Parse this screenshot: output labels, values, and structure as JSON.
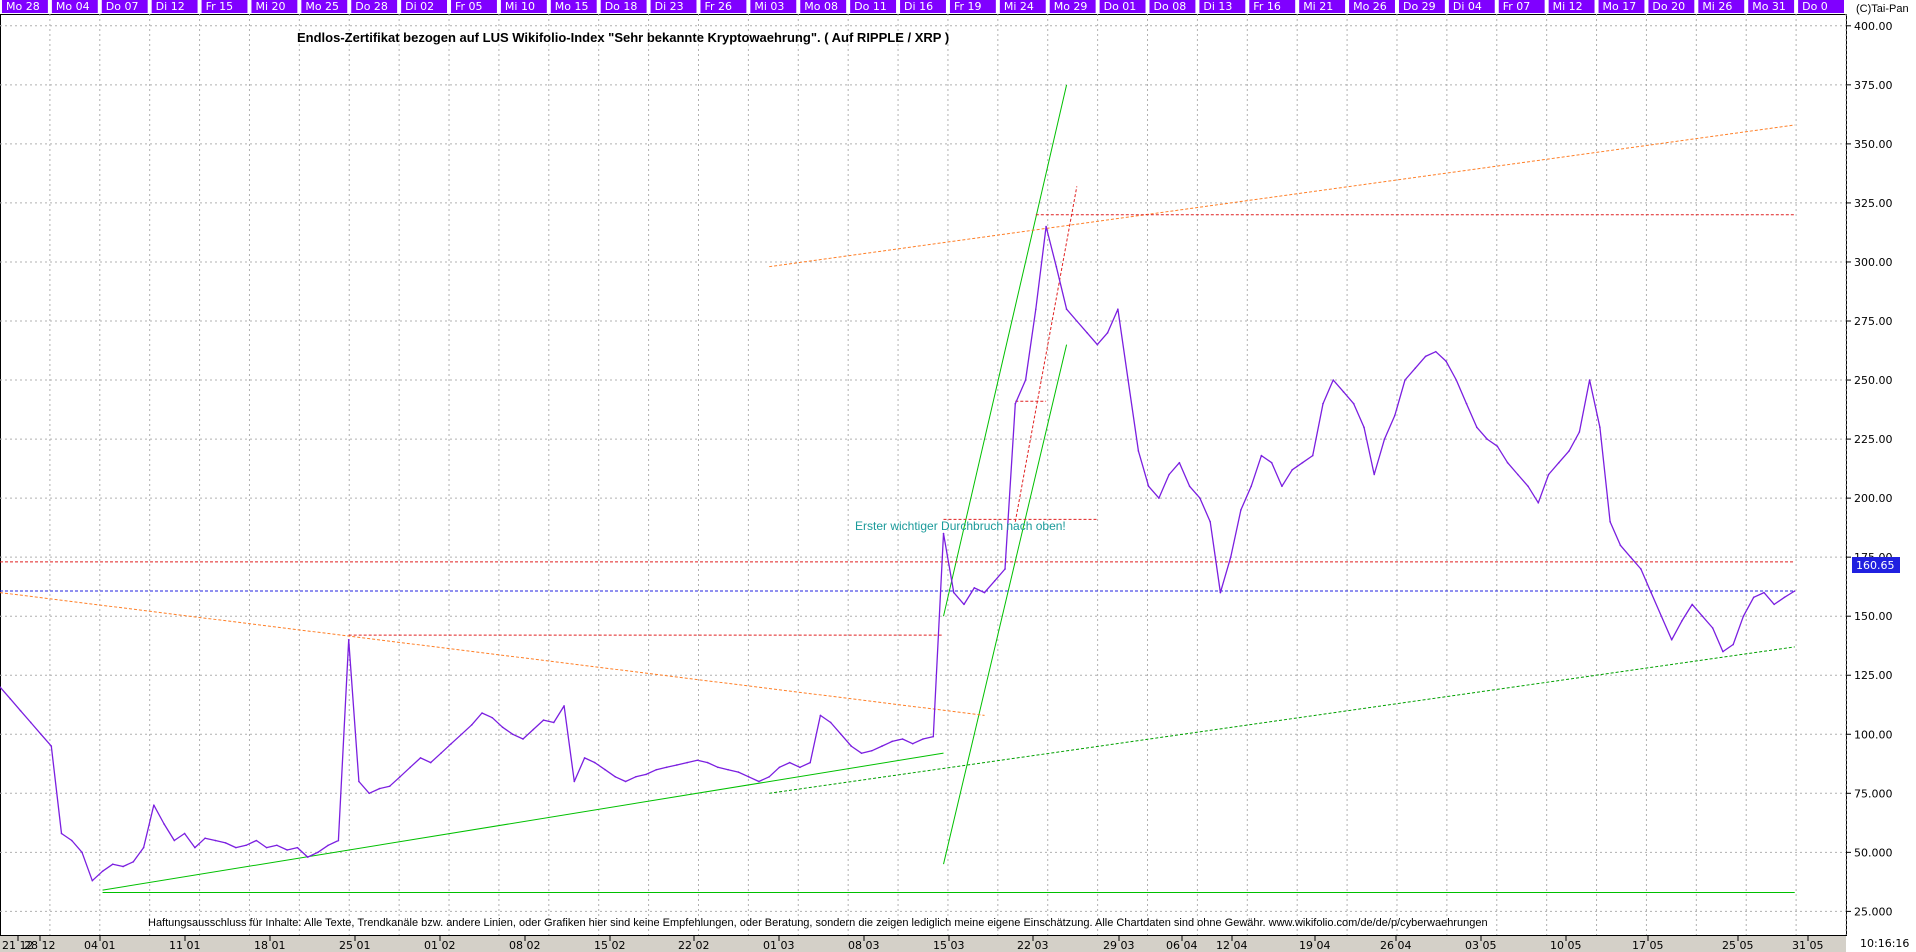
{
  "chart_data": {
    "type": "line",
    "title": "Endlos-Zertifikat bezogen auf LUS Wikifolio-Index \"Sehr bekannte Kryptowaehrung\". ( Auf RIPPLE / XRP )",
    "copyright": "(C)Tai-Pan",
    "annotation": "Erster wichtiger Durchbruch nach oben!",
    "disclaimer": "Haftungsausschluss für Inhalte: Alle Texte, Trendkanäle bzw. andere Linien, oder Grafiken hier sind keine Empfehlungen, oder Beratung, sondern die zeigen lediglich meine eigene Einschätzung. Alle Chartdaten sind ohne Gewähr.  www.wikifolio.com/de/de/p/cyberwaehrungen",
    "last_value_label": "160.65",
    "last_value": 160.65,
    "clock": "10:16:16",
    "ylim": [
      15,
      405
    ],
    "y_ticks": [
      25,
      50,
      75,
      100,
      125,
      150,
      175,
      200,
      225,
      250,
      275,
      300,
      325,
      350,
      375,
      400
    ],
    "y_tick_labels": [
      "25.000",
      "50.000",
      "75.000",
      "100.00",
      "125.00",
      "150.00",
      "175.00",
      "200.00",
      "225.00",
      "250.00",
      "275.00",
      "300.00",
      "325.00",
      "350.00",
      "375.00",
      "400.00"
    ],
    "top_day_labels": [
      "Mo 28",
      "Mo 04",
      "Do 07",
      "Di 12",
      "Fr 15",
      "Mi 20",
      "Mo 25",
      "Do 28",
      "Di 02",
      "Fr 05",
      "Mi 10",
      "Mo 15",
      "Do 18",
      "Di 23",
      "Fr 26",
      "Mi 03",
      "Mo 08",
      "Do 11",
      "Di 16",
      "Fr 19",
      "Mi 24",
      "Mo 29",
      "Do 01",
      "Do 08",
      "Di 13",
      "Fr 16",
      "Mi 21",
      "Mo 26",
      "Do 29",
      "Di 04",
      "Fr 07",
      "Mi 12",
      "Mo 17",
      "Do 20",
      "Mi 26",
      "Mo 31",
      "Do 0"
    ],
    "bottom_date_labels": [
      "21 12",
      "28 12",
      "04 01",
      "11 01",
      "18 01",
      "25 01",
      "01 02",
      "08 02",
      "15 02",
      "22 02",
      "01 03",
      "08 03",
      "15 03",
      "22 03",
      "29 03",
      "06 04",
      "12 04",
      "19 04",
      "26 04",
      "03 05",
      "10 05",
      "17 05",
      "25 05",
      "31 05"
    ],
    "x_unit": "trading day index (0 = 21 12)",
    "series": [
      {
        "color": "#7b1fe0",
        "points": [
          [
            0,
            120
          ],
          [
            1,
            115
          ],
          [
            2,
            110
          ],
          [
            3,
            105
          ],
          [
            4,
            100
          ],
          [
            5,
            95
          ],
          [
            6,
            58
          ],
          [
            7,
            55
          ],
          [
            8,
            50
          ],
          [
            9,
            38
          ],
          [
            10,
            42
          ],
          [
            11,
            45
          ],
          [
            12,
            44
          ],
          [
            13,
            46
          ],
          [
            14,
            52
          ],
          [
            15,
            70
          ],
          [
            16,
            62
          ],
          [
            17,
            55
          ],
          [
            18,
            58
          ],
          [
            19,
            52
          ],
          [
            20,
            56
          ],
          [
            21,
            55
          ],
          [
            22,
            54
          ],
          [
            23,
            52
          ],
          [
            24,
            53
          ],
          [
            25,
            55
          ],
          [
            26,
            52
          ],
          [
            27,
            53
          ],
          [
            28,
            51
          ],
          [
            29,
            52
          ],
          [
            30,
            48
          ],
          [
            31,
            50
          ],
          [
            32,
            53
          ],
          [
            33,
            55
          ],
          [
            34,
            140
          ],
          [
            35,
            80
          ],
          [
            36,
            75
          ],
          [
            37,
            77
          ],
          [
            38,
            78
          ],
          [
            39,
            82
          ],
          [
            40,
            86
          ],
          [
            41,
            90
          ],
          [
            42,
            88
          ],
          [
            43,
            92
          ],
          [
            44,
            96
          ],
          [
            45,
            100
          ],
          [
            46,
            104
          ],
          [
            47,
            109
          ],
          [
            48,
            107
          ],
          [
            49,
            103
          ],
          [
            50,
            100
          ],
          [
            51,
            98
          ],
          [
            52,
            102
          ],
          [
            53,
            106
          ],
          [
            54,
            105
          ],
          [
            55,
            112
          ],
          [
            56,
            80
          ],
          [
            57,
            90
          ],
          [
            58,
            88
          ],
          [
            59,
            85
          ],
          [
            60,
            82
          ],
          [
            61,
            80
          ],
          [
            62,
            82
          ],
          [
            63,
            83
          ],
          [
            64,
            85
          ],
          [
            65,
            86
          ],
          [
            66,
            87
          ],
          [
            67,
            88
          ],
          [
            68,
            89
          ],
          [
            69,
            88
          ],
          [
            70,
            86
          ],
          [
            71,
            85
          ],
          [
            72,
            84
          ],
          [
            73,
            82
          ],
          [
            74,
            80
          ],
          [
            75,
            82
          ],
          [
            76,
            86
          ],
          [
            77,
            88
          ],
          [
            78,
            86
          ],
          [
            79,
            88
          ],
          [
            80,
            108
          ],
          [
            81,
            105
          ],
          [
            82,
            100
          ],
          [
            83,
            95
          ],
          [
            84,
            92
          ],
          [
            85,
            93
          ],
          [
            86,
            95
          ],
          [
            87,
            97
          ],
          [
            88,
            98
          ],
          [
            89,
            96
          ],
          [
            90,
            98
          ],
          [
            91,
            99
          ],
          [
            92,
            185
          ],
          [
            93,
            160
          ],
          [
            94,
            155
          ],
          [
            95,
            162
          ],
          [
            96,
            160
          ],
          [
            97,
            165
          ],
          [
            98,
            170
          ],
          [
            99,
            240
          ],
          [
            100,
            250
          ],
          [
            101,
            280
          ],
          [
            102,
            315
          ],
          [
            103,
            298
          ],
          [
            104,
            280
          ],
          [
            105,
            275
          ],
          [
            106,
            270
          ],
          [
            107,
            265
          ],
          [
            108,
            270
          ],
          [
            109,
            280
          ],
          [
            110,
            250
          ],
          [
            111,
            220
          ],
          [
            112,
            205
          ],
          [
            113,
            200
          ],
          [
            114,
            210
          ],
          [
            115,
            215
          ],
          [
            116,
            205
          ],
          [
            117,
            200
          ],
          [
            118,
            190
          ],
          [
            119,
            160
          ],
          [
            120,
            175
          ],
          [
            121,
            195
          ],
          [
            122,
            205
          ],
          [
            123,
            218
          ],
          [
            124,
            215
          ],
          [
            125,
            205
          ],
          [
            126,
            212
          ],
          [
            127,
            215
          ],
          [
            128,
            218
          ],
          [
            129,
            240
          ],
          [
            130,
            250
          ],
          [
            131,
            245
          ],
          [
            132,
            240
          ],
          [
            133,
            230
          ],
          [
            134,
            210
          ],
          [
            135,
            225
          ],
          [
            136,
            235
          ],
          [
            137,
            250
          ],
          [
            138,
            255
          ],
          [
            139,
            260
          ],
          [
            140,
            262
          ],
          [
            141,
            258
          ],
          [
            142,
            250
          ],
          [
            143,
            240
          ],
          [
            144,
            230
          ],
          [
            145,
            225
          ],
          [
            146,
            222
          ],
          [
            147,
            215
          ],
          [
            148,
            210
          ],
          [
            149,
            205
          ],
          [
            150,
            198
          ],
          [
            151,
            210
          ],
          [
            152,
            215
          ],
          [
            153,
            220
          ],
          [
            154,
            228
          ],
          [
            155,
            250
          ],
          [
            156,
            230
          ],
          [
            157,
            190
          ],
          [
            158,
            180
          ],
          [
            159,
            175
          ],
          [
            160,
            170
          ],
          [
            161,
            160
          ],
          [
            162,
            150
          ],
          [
            163,
            140
          ],
          [
            164,
            148
          ],
          [
            165,
            155
          ],
          [
            166,
            150
          ],
          [
            167,
            145
          ],
          [
            168,
            135
          ],
          [
            169,
            138
          ],
          [
            170,
            150
          ],
          [
            171,
            158
          ],
          [
            172,
            160
          ],
          [
            173,
            155
          ],
          [
            174,
            158
          ],
          [
            175,
            160.65
          ]
        ]
      }
    ],
    "trendlines": [
      {
        "color": "#00c000",
        "style": "solid",
        "points": [
          [
            10,
            34
          ],
          [
            92,
            92
          ]
        ]
      },
      {
        "color": "#00c000",
        "style": "solid",
        "points": [
          [
            92,
            150
          ],
          [
            104,
            375
          ]
        ]
      },
      {
        "color": "#00c000",
        "style": "solid",
        "points": [
          [
            92,
            45
          ],
          [
            104,
            265
          ]
        ]
      },
      {
        "color": "#00c000",
        "style": "solid",
        "points": [
          [
            10,
            33
          ],
          [
            175,
            33
          ]
        ]
      },
      {
        "color": "#00a000",
        "style": "dashed",
        "points": [
          [
            75,
            75
          ],
          [
            175,
            137
          ]
        ]
      },
      {
        "color": "#ff7f27",
        "style": "dashed",
        "points": [
          [
            0,
            160
          ],
          [
            96,
            108
          ]
        ]
      },
      {
        "color": "#ff7f27",
        "style": "dashed",
        "points": [
          [
            75,
            298
          ],
          [
            175,
            358
          ]
        ]
      },
      {
        "color": "#e02020",
        "style": "dashed",
        "points": [
          [
            0,
            173
          ],
          [
            175,
            173
          ]
        ]
      },
      {
        "color": "#e02020",
        "style": "dashed",
        "points": [
          [
            34,
            142
          ],
          [
            92,
            142
          ]
        ]
      },
      {
        "color": "#e02020",
        "style": "dashed",
        "points": [
          [
            92,
            191
          ],
          [
            107,
            191
          ]
        ]
      },
      {
        "color": "#e02020",
        "style": "dashed",
        "points": [
          [
            99,
            241
          ],
          [
            102,
            241
          ]
        ]
      },
      {
        "color": "#e02020",
        "style": "dashed",
        "points": [
          [
            99,
            190
          ],
          [
            105,
            332
          ]
        ]
      },
      {
        "color": "#e02020",
        "style": "dashed",
        "points": [
          [
            101,
            320
          ],
          [
            175,
            320
          ]
        ]
      },
      {
        "color": "#2020e0",
        "style": "dashed",
        "points": [
          [
            0,
            160.65
          ],
          [
            175,
            160.65
          ]
        ]
      }
    ],
    "grid": true
  }
}
